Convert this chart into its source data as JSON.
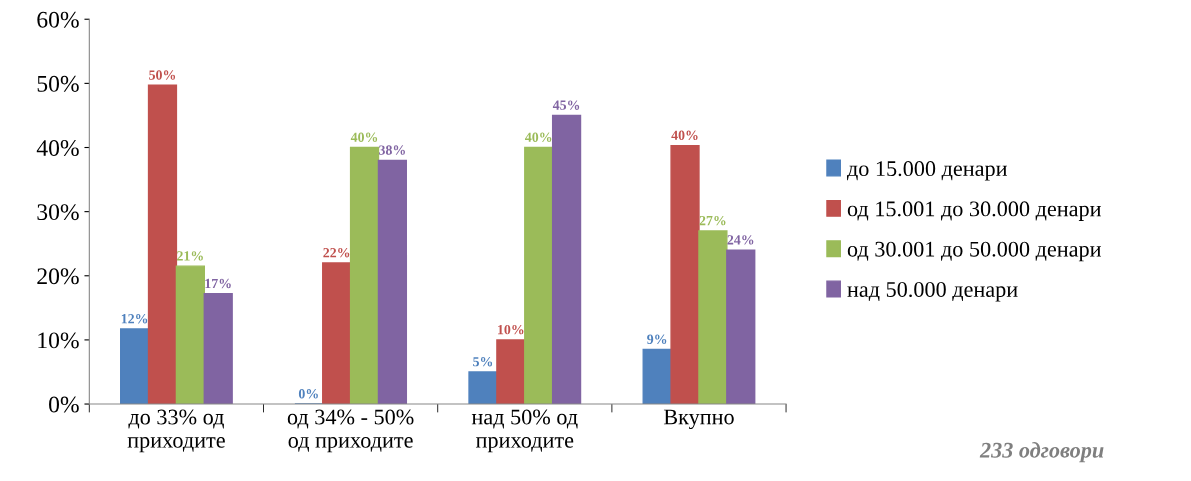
{
  "chart_data": {
    "type": "bar",
    "categories": [
      "до 33% од приходите",
      "од 34% - 50% од приходите",
      "над 50% од приходите",
      "Вкупно"
    ],
    "series": [
      {
        "name": "до 15.000 денари",
        "color": "#4f81bd",
        "values": [
          11.7,
          0,
          5,
          8.5
        ],
        "value_labels": [
          "12%",
          "0%",
          "5%",
          "9%"
        ]
      },
      {
        "name": "од 15.001 до 30.000 денари",
        "color": "#c0504d",
        "values": [
          49.7,
          22,
          10,
          40.3
        ],
        "value_labels": [
          "50%",
          "22%",
          "10%",
          "40%"
        ]
      },
      {
        "name": "од 30.001 до 50.000 денари",
        "color": "#9bbb59",
        "values": [
          21.5,
          40,
          40,
          27
        ],
        "value_labels": [
          "21%",
          "40%",
          "40%",
          "27%"
        ]
      },
      {
        "name": "над 50.000 денари",
        "color": "#8064a2",
        "values": [
          17.2,
          38,
          45,
          24
        ],
        "value_labels": [
          "17%",
          "38%",
          "45%",
          "24%"
        ]
      }
    ],
    "ylim": [
      0,
      60
    ],
    "yticks": [
      {
        "value": 0,
        "label": "0%"
      },
      {
        "value": 10,
        "label": "10%"
      },
      {
        "value": 20,
        "label": "20%"
      },
      {
        "value": 30,
        "label": "30%"
      },
      {
        "value": 40,
        "label": "40%"
      },
      {
        "value": 50,
        "label": "50%"
      },
      {
        "value": 60,
        "label": "60%"
      }
    ],
    "grid": false,
    "legend": "right",
    "annotations": [
      "233 одговори"
    ]
  }
}
